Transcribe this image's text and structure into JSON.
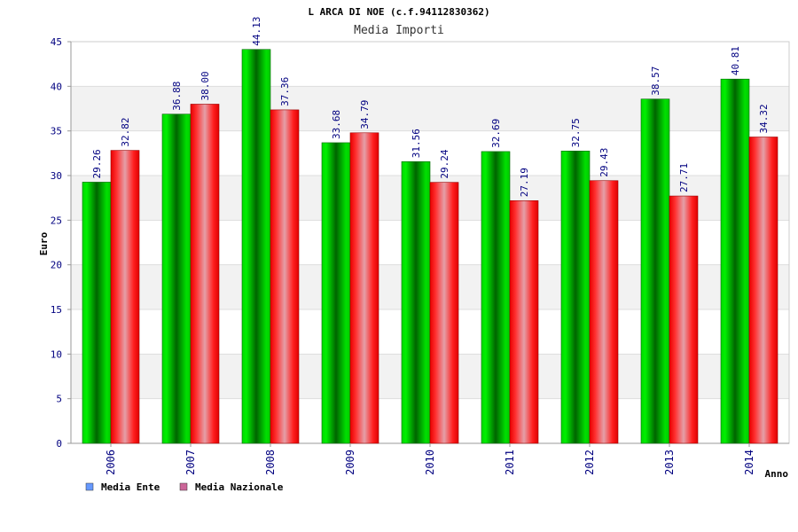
{
  "chart_data": {
    "type": "bar",
    "title": "L ARCA DI NOE (c.f.94112830362)",
    "subtitle": "Media Importi",
    "xlabel": "Anno",
    "ylabel": "Euro",
    "ylim": [
      0,
      45
    ],
    "yticks": [
      0,
      5,
      10,
      15,
      20,
      25,
      30,
      35,
      40,
      45
    ],
    "categories": [
      "2006",
      "2007",
      "2008",
      "2009",
      "2010",
      "2011",
      "2012",
      "2013",
      "2014"
    ],
    "series": [
      {
        "name": "Media Ente",
        "values": [
          29.26,
          36.88,
          44.13,
          33.68,
          31.56,
          32.69,
          32.75,
          38.57,
          40.81
        ],
        "labels": [
          "29.26",
          "36.88",
          "44.13",
          "33.68",
          "31.56",
          "32.69",
          "32.75",
          "38.57",
          "40.81"
        ],
        "color": "#00cc00",
        "legend_color": "#6699ff"
      },
      {
        "name": "Media Nazionale",
        "values": [
          32.82,
          38.0,
          37.36,
          34.79,
          29.24,
          27.19,
          29.43,
          27.71,
          34.32
        ],
        "labels": [
          "32.82",
          "38.00",
          "37.36",
          "34.79",
          "29.24",
          "27.19",
          "29.43",
          "27.71",
          "34.32"
        ],
        "color": "#ff0000",
        "legend_color": "#cc6699"
      }
    ],
    "grid": true,
    "legend_position": "bottom-left"
  }
}
